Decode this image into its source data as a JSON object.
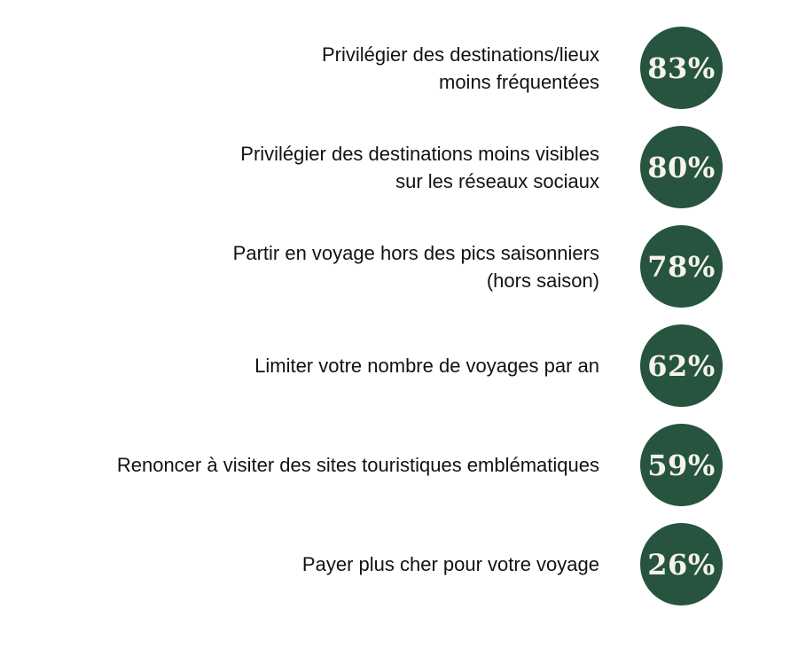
{
  "chart_data": {
    "type": "bar",
    "title": "",
    "xlabel": "",
    "ylabel": "",
    "value_suffix": "%",
    "legend": false,
    "layout": "ranked list, right-aligned category labels with circular percentage badges on the right",
    "categories": [
      "Privilégier des destinations/lieux moins fréquentées",
      "Privilégier des destinations moins visibles sur les réseaux sociaux",
      "Partir en voyage hors des pics saisonniers (hors saison)",
      "Limiter votre nombre de voyages par an",
      "Renoncer à visiter des sites touristiques emblématiques",
      "Payer plus cher pour votre voyage"
    ],
    "values": [
      83,
      80,
      78,
      62,
      59,
      26
    ],
    "items": [
      {
        "lines": [
          "Privilégier des destinations/lieux",
          "moins fréquentées"
        ],
        "value": 83,
        "display": "83%"
      },
      {
        "lines": [
          "Privilégier des destinations moins visibles",
          "sur les réseaux sociaux"
        ],
        "value": 80,
        "display": "80%"
      },
      {
        "lines": [
          "Partir en voyage hors des pics saisonniers",
          "(hors saison)"
        ],
        "value": 78,
        "display": "78%"
      },
      {
        "lines": [
          "Limiter votre nombre de voyages par an"
        ],
        "value": 62,
        "display": "62%"
      },
      {
        "lines": [
          "Renoncer à visiter des sites touristiques emblématiques"
        ],
        "value": 59,
        "display": "59%"
      },
      {
        "lines": [
          "Payer plus cher pour votre voyage"
        ],
        "value": 26,
        "display": "26%"
      }
    ],
    "colors": {
      "badge_background": "#26543e",
      "badge_text": "#f6f3ec",
      "label_text": "#121212",
      "page_background": "#ffffff"
    }
  }
}
